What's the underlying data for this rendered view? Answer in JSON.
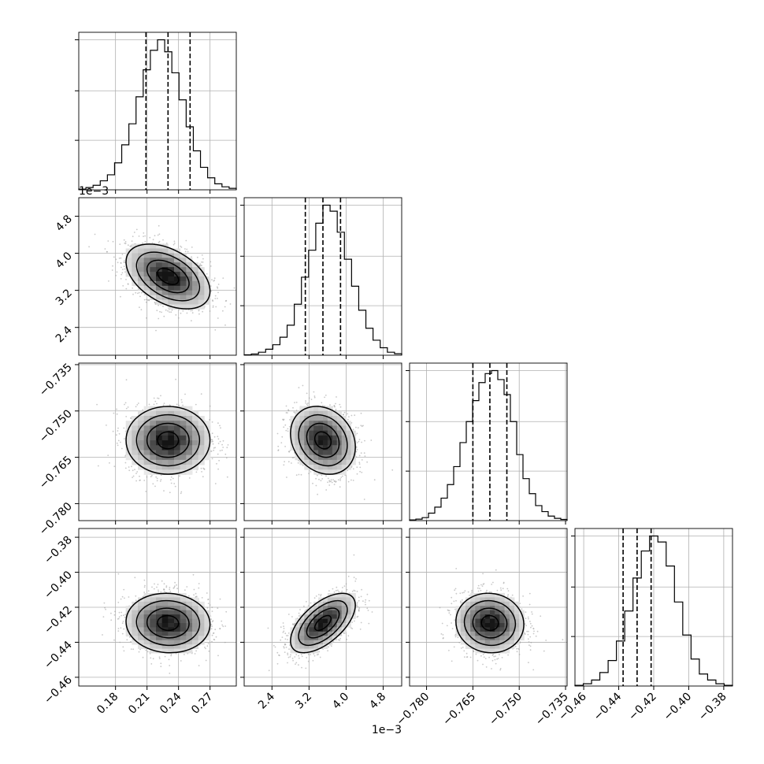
{
  "chart_data": {
    "type": "corner",
    "n_params": 4,
    "grid": true,
    "params": [
      {
        "range": [
          0.145,
          0.295
        ],
        "ticks": [
          0.18,
          0.21,
          0.24,
          0.27
        ],
        "tick_labels": [
          "0.18",
          "0.21",
          "0.24",
          "0.27"
        ],
        "offset_label": "",
        "mean": 0.23,
        "sd": 0.02,
        "quantiles": [
          0.209,
          0.23,
          0.251
        ],
        "hist_counts": [
          0.5,
          1.5,
          3,
          6,
          10,
          18,
          30,
          44,
          62,
          80,
          93,
          100,
          92,
          78,
          60,
          42,
          26,
          15,
          8,
          4,
          2,
          1
        ]
      },
      {
        "range": [
          1.8,
          5.2
        ],
        "ticks": [
          2.4,
          3.2,
          4.0,
          4.8
        ],
        "tick_labels": [
          "2.4",
          "3.2",
          "4.0",
          "4.8"
        ],
        "offset_label": "1e−3",
        "mean": 3.5,
        "sd": 0.35,
        "quantiles": [
          3.12,
          3.5,
          3.88
        ],
        "hist_counts": [
          0.3,
          0.8,
          2,
          4,
          7,
          12,
          20,
          34,
          52,
          70,
          88,
          100,
          96,
          82,
          64,
          46,
          30,
          18,
          10,
          5,
          2,
          1
        ]
      },
      {
        "range": [
          -0.7855,
          -0.7345
        ],
        "ticks": [
          -0.78,
          -0.765,
          -0.75,
          -0.735
        ],
        "tick_labels": [
          "−0.780",
          "−0.765",
          "−0.750",
          "−0.735"
        ],
        "offset_label": "",
        "mean": -0.7595,
        "sd": 0.0055,
        "quantiles": [
          -0.765,
          -0.7595,
          -0.754
        ],
        "hist_counts": [
          0.5,
          1,
          2,
          5,
          9,
          15,
          24,
          36,
          52,
          66,
          80,
          92,
          98,
          100,
          94,
          84,
          66,
          44,
          28,
          18,
          10,
          6,
          3,
          1.5,
          0.8
        ]
      },
      {
        "range": [
          -0.465,
          -0.375
        ],
        "ticks": [
          -0.46,
          -0.44,
          -0.42,
          -0.4,
          -0.38
        ],
        "tick_labels": [
          "−0.46",
          "−0.44",
          "−0.42",
          "−0.40",
          "−0.38"
        ],
        "offset_label": "",
        "mean": -0.429,
        "sd": 0.0085,
        "quantiles": [
          -0.4375,
          -0.4295,
          -0.4215
        ],
        "hist_counts": [
          0.5,
          1.5,
          4,
          9,
          17,
          30,
          50,
          72,
          90,
          100,
          96,
          80,
          56,
          34,
          18,
          8,
          4,
          1.5,
          0.5
        ]
      }
    ],
    "correlations": {
      "1_0": -0.45,
      "2_0": 0.0,
      "2_1": -0.2,
      "3_0": -0.05,
      "3_1": 0.6,
      "3_2": -0.05
    }
  }
}
